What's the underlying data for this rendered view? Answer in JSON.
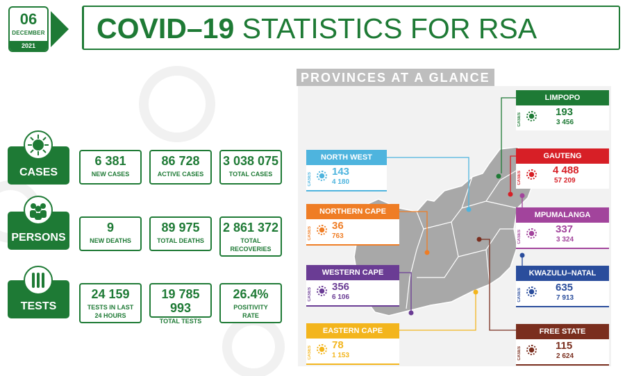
{
  "date": {
    "day": "06",
    "month": "DECEMBER",
    "year": "2021"
  },
  "title": {
    "main": "COVID–19",
    "sub": "STATISTICS FOR RSA"
  },
  "stats": {
    "cases": {
      "label": "CASES",
      "items": [
        {
          "value": "6 381",
          "label": "NEW CASES"
        },
        {
          "value": "86 728",
          "label": "ACTIVE CASES"
        },
        {
          "value": "3 038 075",
          "label": "TOTAL CASES"
        }
      ]
    },
    "persons": {
      "label": "PERSONS",
      "items": [
        {
          "value": "9",
          "label": "NEW DEATHS"
        },
        {
          "value": "89 975",
          "label": "TOTAL DEATHS"
        },
        {
          "value": "2 861 372",
          "label": "TOTAL",
          "label2": "RECOVERIES"
        }
      ]
    },
    "tests": {
      "label": "TESTS",
      "items": [
        {
          "value": "24 159",
          "label": "TESTS IN LAST",
          "label2": "24 HOURS"
        },
        {
          "value": "19 785 993",
          "label": "TOTAL TESTS"
        },
        {
          "value": "26.4%",
          "label": "POSITIVITY",
          "label2": "RATE"
        }
      ]
    }
  },
  "provinces_title": "PROVINCES AT A GLANCE",
  "cases_tag": "CASES",
  "provinces": {
    "limpopo": {
      "name": "LIMPOPO",
      "new": "193",
      "total": "3 456",
      "color": "#1e7a35"
    },
    "gauteng": {
      "name": "GAUTENG",
      "new": "4 488",
      "total": "57 209",
      "color": "#d71f26"
    },
    "mpumalanga": {
      "name": "MPUMALANGA",
      "new": "337",
      "total": "3 324",
      "color": "#a2449c"
    },
    "kwazulu_natal": {
      "name": "KWAZULU–NATAL",
      "new": "635",
      "total": "7 913",
      "color": "#2a4d9c"
    },
    "free_state": {
      "name": "FREE STATE",
      "new": "115",
      "total": "2 624",
      "color": "#7a2e1e"
    },
    "north_west": {
      "name": "NORTH WEST",
      "new": "143",
      "total": "4 180",
      "color": "#4eb4de"
    },
    "northern_cape": {
      "name": "NORTHERN CAPE",
      "new": "36",
      "total": "763",
      "color": "#ef7d25"
    },
    "western_cape": {
      "name": "WESTERN CAPE",
      "new": "356",
      "total": "6 106",
      "color": "#6a3c94"
    },
    "eastern_cape": {
      "name": "EASTERN CAPE",
      "new": "78",
      "total": "1 153",
      "color": "#f3b51d"
    }
  },
  "colors": {
    "brand_green": "#1e7a35",
    "map_grey": "#a8a8a8"
  },
  "icons": {
    "cases": "virus-icon",
    "persons": "people-icon",
    "tests": "test-tubes-icon"
  }
}
